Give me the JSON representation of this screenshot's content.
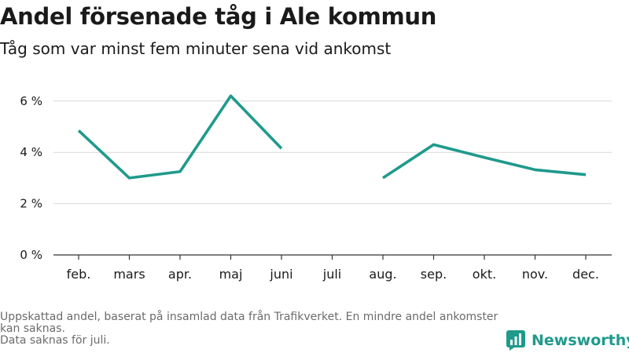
{
  "header": {
    "title": "Andel försenade tåg i Ale kommun",
    "subtitle": "Tåg som var minst fem minuter sena vid ankomst"
  },
  "footnote": {
    "line1": "Uppskattad andel, baserat på insamlad data från Trafikverket. En mindre andel ankomster kan saknas.",
    "line2": "Data saknas för juli."
  },
  "brand": {
    "name": "Newsworthy",
    "icon": "newsworthy-logo-icon"
  },
  "colors": {
    "line": "#1f9a8c",
    "grid": "#d9d9d9",
    "axis": "#333333",
    "text": "#1a1a1a"
  },
  "chart_data": {
    "type": "line",
    "title": "Andel försenade tåg i Ale kommun",
    "subtitle": "Tåg som var minst fem minuter sena vid ankomst",
    "categories": [
      "feb.",
      "mars",
      "apr.",
      "maj",
      "juni",
      "juli",
      "aug.",
      "sep.",
      "okt.",
      "nov.",
      "dec."
    ],
    "series": [
      {
        "values": [
          4.85,
          3.0,
          3.25,
          6.2,
          4.15,
          null,
          3.0,
          4.3,
          3.8,
          3.32,
          3.13
        ]
      }
    ],
    "yticks": [
      0,
      2,
      4,
      6
    ],
    "ytick_labels": [
      "0 %",
      "2 %",
      "4 %",
      "6 %"
    ],
    "ylim": [
      0,
      6.6
    ],
    "grid": true,
    "xlabel": "",
    "ylabel": ""
  }
}
